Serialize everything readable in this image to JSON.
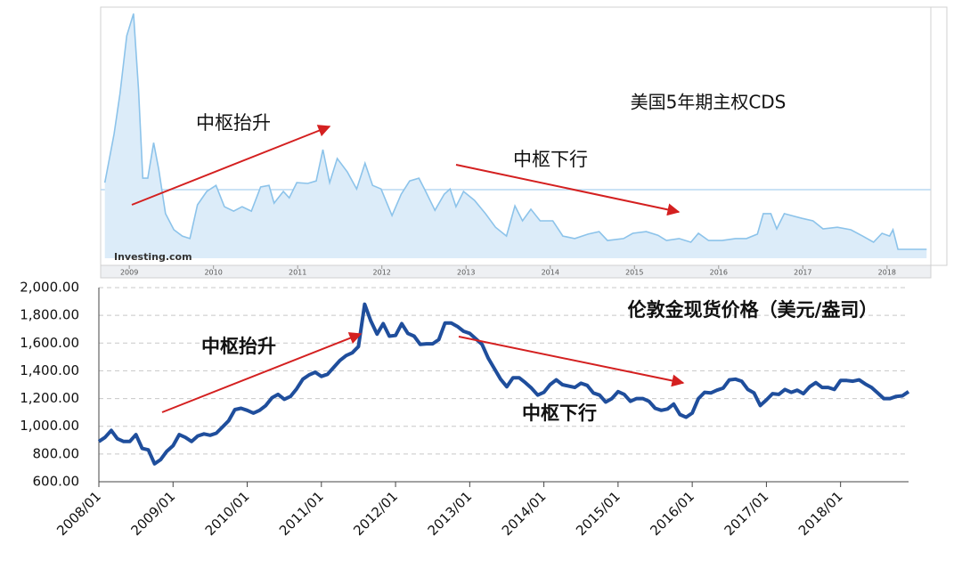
{
  "chart_data": [
    {
      "type": "area",
      "title": "美国5年期主权CDS",
      "logo": "Investing.com",
      "annotations": [
        "中枢抬升",
        "中枢下行"
      ],
      "color": "#8cc3ea",
      "fill": "#dcecf9",
      "xlim": [
        2008.66,
        2018.52
      ],
      "ylim": [
        0,
        90
      ],
      "xticks": [
        2009,
        2010,
        2011,
        2012,
        2013,
        2014,
        2015,
        2016,
        2017,
        2018
      ],
      "x": [
        2008.71,
        2008.82,
        2008.89,
        2008.97,
        2009.05,
        2009.11,
        2009.16,
        2009.22,
        2009.29,
        2009.35,
        2009.43,
        2009.53,
        2009.63,
        2009.72,
        2009.81,
        2009.92,
        2010.03,
        2010.13,
        2010.24,
        2010.34,
        2010.45,
        2010.56,
        2010.66,
        2010.72,
        2010.83,
        2010.9,
        2010.99,
        2011.12,
        2011.22,
        2011.3,
        2011.38,
        2011.47,
        2011.59,
        2011.7,
        2011.8,
        2011.89,
        2011.99,
        2012.12,
        2012.23,
        2012.33,
        2012.44,
        2012.52,
        2012.63,
        2012.74,
        2012.81,
        2012.88,
        2012.97,
        2013.1,
        2013.23,
        2013.35,
        2013.48,
        2013.58,
        2013.67,
        2013.77,
        2013.88,
        2014.03,
        2014.15,
        2014.29,
        2014.45,
        2014.58,
        2014.68,
        2014.87,
        2014.98,
        2015.14,
        2015.28,
        2015.38,
        2015.53,
        2015.67,
        2015.76,
        2015.88,
        2016.04,
        2016.2,
        2016.33,
        2016.46,
        2016.53,
        2016.62,
        2016.69,
        2016.78,
        2016.99,
        2017.12,
        2017.24,
        2017.41,
        2017.57,
        2017.71,
        2017.84,
        2017.94,
        2018.03,
        2018.07,
        2018.13,
        2018.47
      ],
      "values": [
        27.3,
        44.9,
        59.4,
        80.3,
        88.3,
        61.0,
        28.9,
        28.9,
        41.7,
        32.1,
        16.1,
        10.3,
        8.0,
        7.1,
        19.3,
        24.1,
        26.3,
        18.6,
        17.0,
        18.6,
        17.0,
        25.7,
        26.3,
        19.9,
        24.1,
        21.8,
        27.3,
        27.0,
        27.9,
        39.2,
        27.3,
        36.0,
        31.1,
        25.0,
        34.3,
        26.3,
        25.0,
        15.4,
        23.1,
        27.9,
        28.9,
        24.1,
        17.3,
        23.1,
        25.0,
        18.6,
        24.1,
        20.9,
        16.1,
        11.2,
        8.0,
        18.9,
        13.5,
        17.7,
        13.5,
        13.5,
        8.0,
        7.1,
        8.7,
        9.6,
        6.4,
        7.1,
        9.0,
        9.6,
        8.3,
        6.4,
        7.1,
        5.8,
        9.0,
        6.4,
        6.4,
        7.1,
        7.1,
        8.7,
        16.1,
        16.1,
        10.6,
        16.1,
        14.4,
        13.5,
        10.6,
        11.2,
        10.3,
        8.0,
        5.8,
        9.0,
        8.0,
        10.3,
        3.2,
        3.2
      ]
    },
    {
      "type": "line",
      "title": "伦敦金现货价格（美元/盎司）",
      "annotations": [
        "中枢抬升",
        "中枢下行"
      ],
      "color": "#1f4e9c",
      "grid": true,
      "xlim": [
        "2008/01",
        "2018/12"
      ],
      "ylim": [
        600,
        2000
      ],
      "yticks": [
        {
          "value": 600,
          "label": "600.00"
        },
        {
          "value": 800,
          "label": "800.00"
        },
        {
          "value": 1000,
          "label": "1,000.00"
        },
        {
          "value": 1200,
          "label": "1,200.00"
        },
        {
          "value": 1400,
          "label": "1,400.00"
        },
        {
          "value": 1600,
          "label": "1,600.00"
        },
        {
          "value": 1800,
          "label": "1,800.00"
        },
        {
          "value": 2000,
          "label": "2,000.00"
        }
      ],
      "xticks": [
        "2008/01",
        "2009/01",
        "2010/01",
        "2011/01",
        "2012/01",
        "2013/01",
        "2014/01",
        "2015/01",
        "2016/01",
        "2017/01",
        "2018/01"
      ],
      "x": [
        "2008/01",
        "2008/02",
        "2008/03",
        "2008/04",
        "2008/05",
        "2008/06",
        "2008/07",
        "2008/08",
        "2008/09",
        "2008/10",
        "2008/11",
        "2008/12",
        "2009/01",
        "2009/02",
        "2009/03",
        "2009/04",
        "2009/05",
        "2009/06",
        "2009/07",
        "2009/08",
        "2009/09",
        "2009/10",
        "2009/11",
        "2009/12",
        "2010/01",
        "2010/02",
        "2010/03",
        "2010/04",
        "2010/05",
        "2010/06",
        "2010/07",
        "2010/08",
        "2010/09",
        "2010/10",
        "2010/11",
        "2010/12",
        "2011/01",
        "2011/02",
        "2011/03",
        "2011/04",
        "2011/05",
        "2011/06",
        "2011/07",
        "2011/08",
        "2011/09",
        "2011/10",
        "2011/11",
        "2011/12",
        "2012/01",
        "2012/02",
        "2012/03",
        "2012/04",
        "2012/05",
        "2012/06",
        "2012/07",
        "2012/08",
        "2012/09",
        "2012/10",
        "2012/11",
        "2012/12",
        "2013/01",
        "2013/02",
        "2013/03",
        "2013/04",
        "2013/05",
        "2013/06",
        "2013/07",
        "2013/08",
        "2013/09",
        "2013/10",
        "2013/11",
        "2013/12",
        "2014/01",
        "2014/02",
        "2014/03",
        "2014/04",
        "2014/05",
        "2014/06",
        "2014/07",
        "2014/08",
        "2014/09",
        "2014/10",
        "2014/11",
        "2014/12",
        "2015/01",
        "2015/02",
        "2015/03",
        "2015/04",
        "2015/05",
        "2015/06",
        "2015/07",
        "2015/08",
        "2015/09",
        "2015/10",
        "2015/11",
        "2015/12",
        "2016/01",
        "2016/02",
        "2016/03",
        "2016/04",
        "2016/05",
        "2016/06",
        "2016/07",
        "2016/08",
        "2016/09",
        "2016/10",
        "2016/11",
        "2016/12",
        "2017/01",
        "2017/02",
        "2017/03",
        "2017/04",
        "2017/05",
        "2017/06",
        "2017/07",
        "2017/08",
        "2017/09",
        "2017/10",
        "2017/11",
        "2017/12",
        "2018/01",
        "2018/02",
        "2018/03",
        "2018/04",
        "2018/05",
        "2018/06",
        "2018/07",
        "2018/08",
        "2018/09",
        "2018/10",
        "2018/11",
        "2018/12"
      ],
      "values": [
        890,
        920,
        970,
        910,
        890,
        890,
        940,
        840,
        830,
        730,
        760,
        820,
        860,
        940,
        920,
        890,
        930,
        945,
        935,
        950,
        995,
        1040,
        1120,
        1130,
        1115,
        1095,
        1115,
        1150,
        1205,
        1230,
        1195,
        1215,
        1270,
        1340,
        1370,
        1390,
        1360,
        1375,
        1425,
        1475,
        1510,
        1530,
        1575,
        1880,
        1760,
        1665,
        1740,
        1650,
        1655,
        1740,
        1670,
        1650,
        1590,
        1595,
        1595,
        1625,
        1745,
        1745,
        1720,
        1685,
        1670,
        1630,
        1590,
        1490,
        1415,
        1340,
        1285,
        1350,
        1350,
        1315,
        1275,
        1225,
        1245,
        1300,
        1335,
        1300,
        1290,
        1280,
        1310,
        1295,
        1240,
        1225,
        1175,
        1200,
        1250,
        1230,
        1180,
        1200,
        1200,
        1180,
        1130,
        1115,
        1125,
        1160,
        1085,
        1065,
        1095,
        1200,
        1245,
        1240,
        1260,
        1275,
        1335,
        1340,
        1325,
        1265,
        1240,
        1150,
        1190,
        1235,
        1230,
        1265,
        1245,
        1260,
        1235,
        1285,
        1315,
        1280,
        1280,
        1265,
        1330,
        1330,
        1325,
        1335,
        1305,
        1280,
        1240,
        1200,
        1200,
        1215,
        1220,
        1250
      ]
    }
  ]
}
